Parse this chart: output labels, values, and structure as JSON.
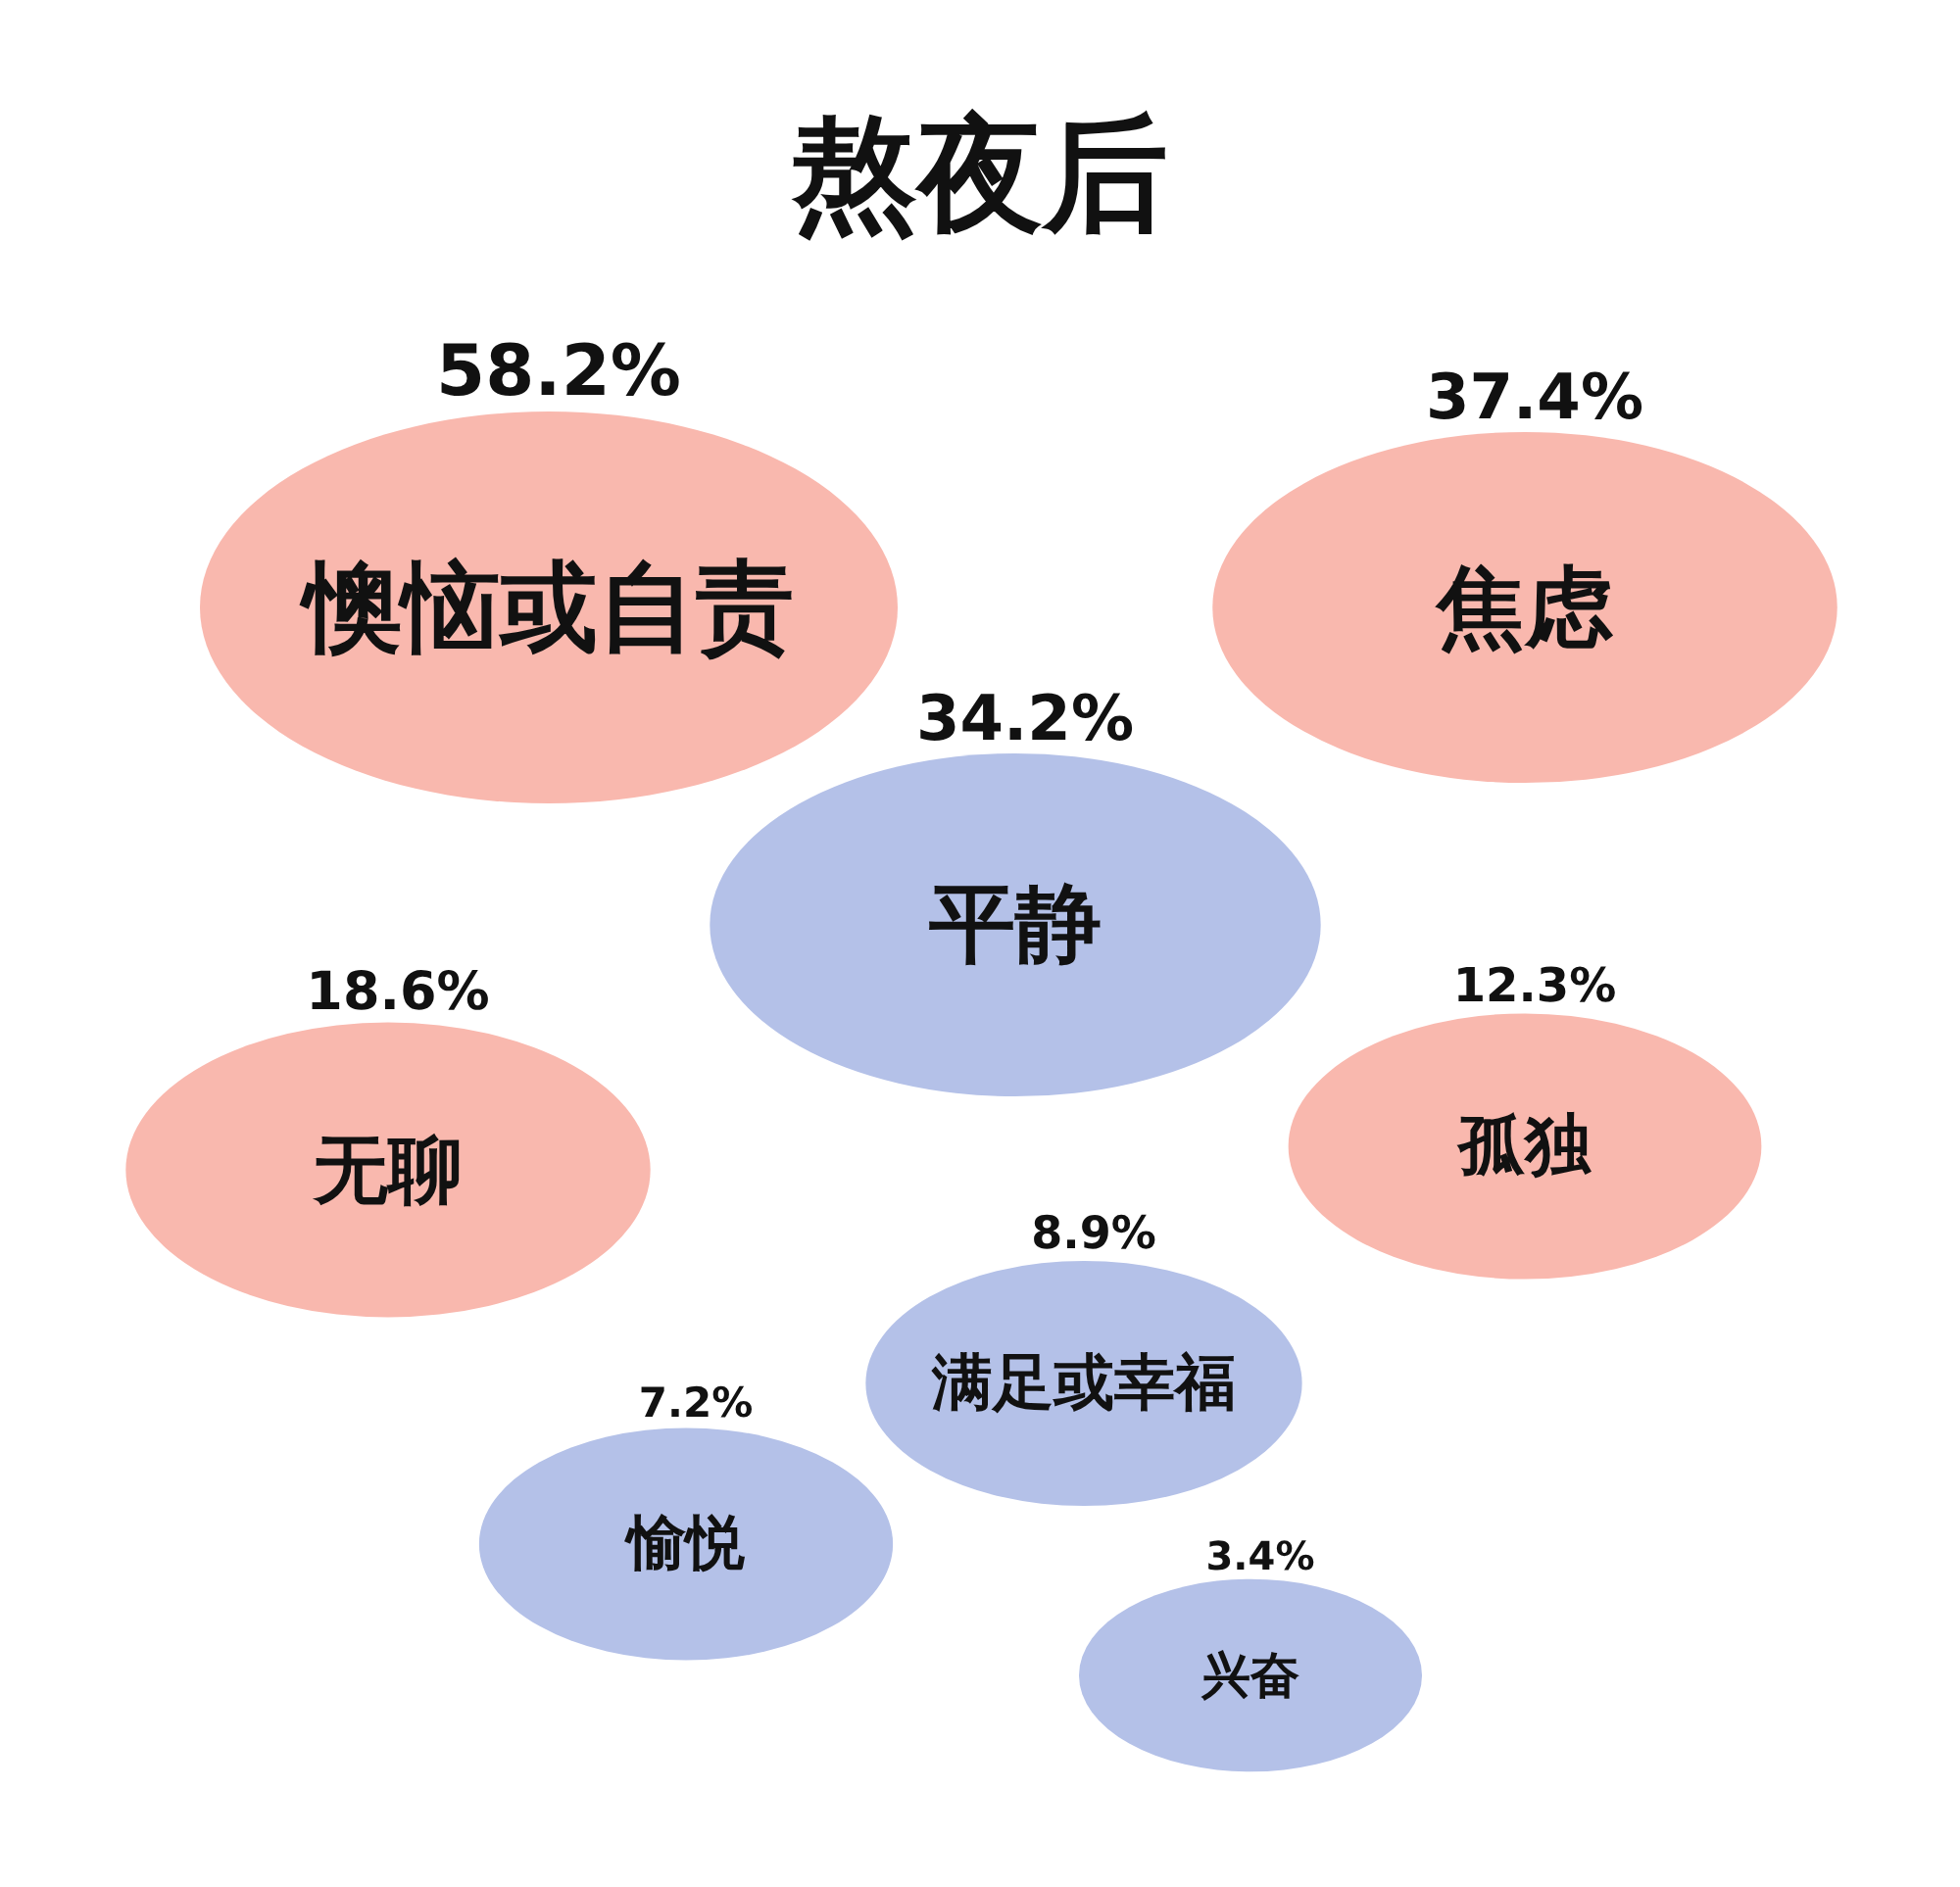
{
  "chart_data": {
    "type": "other",
    "title": "熬夜后",
    "categories": [
      "懊恼或自责",
      "焦虑",
      "平静",
      "无聊",
      "孤独",
      "满足或幸福",
      "愉悦",
      "兴奋"
    ],
    "values": [
      58.2,
      37.4,
      34.2,
      18.6,
      12.3,
      8.9,
      7.2,
      3.4
    ],
    "value_labels": [
      "58.2%",
      "37.4%",
      "34.2%",
      "18.6%",
      "12.3%",
      "8.9%",
      "7.2%",
      "3.4%"
    ],
    "colors": [
      "#f9b8ae",
      "#f9b8ae",
      "#b4c1e8",
      "#f9b8ae",
      "#f9b8ae",
      "#b4c1e8",
      "#b4c1e8",
      "#b4c1e8"
    ]
  }
}
